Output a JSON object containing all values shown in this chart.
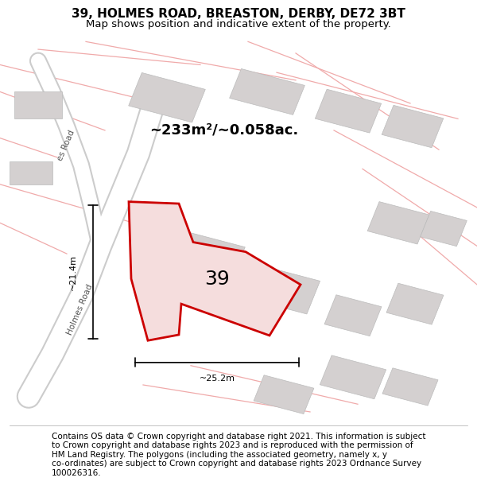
{
  "title": "39, HOLMES ROAD, BREASTON, DERBY, DE72 3BT",
  "subtitle": "Map shows position and indicative extent of the property.",
  "footer_text": "Contains OS data © Crown copyright and database right 2021. This information is subject\nto Crown copyright and database rights 2023 and is reproduced with the permission of\nHM Land Registry. The polygons (including the associated geometry, namely x, y\nco-ordinates) are subject to Crown copyright and database rights 2023 Ordnance Survey\n100026316.",
  "area_label": "~233m²/~0.058ac.",
  "number_label": "39",
  "dim_width": "~25.2m",
  "dim_height": "~21.4m",
  "road_label_upper": "es Road",
  "road_label_lower": "Holmes Road",
  "map_bg": "#eeecec",
  "building_fill": "#d4d0d0",
  "building_edge": "#bbbbbb",
  "road_fill": "#ffffff",
  "road_edge": "#cccccc",
  "red_line_color": "#cc0000",
  "red_road_color": "#f0aaaa",
  "poly_fill": "#f5dddd",
  "title_fontsize": 11,
  "subtitle_fontsize": 9.5,
  "footer_fontsize": 7.5,
  "area_fontsize": 13,
  "number_fontsize": 18,
  "dim_fontsize": 8,
  "road_label_fontsize": 7.5
}
